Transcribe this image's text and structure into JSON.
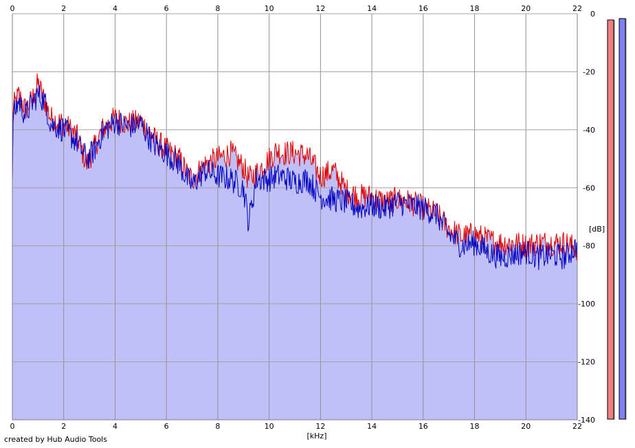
{
  "chart_data": {
    "type": "area",
    "xlabel": "[kHz]",
    "ylabel": "[dB]",
    "xlim": [
      0,
      22
    ],
    "ylim": [
      -140,
      0
    ],
    "x_ticks": [
      0,
      2,
      4,
      6,
      8,
      10,
      12,
      14,
      16,
      18,
      20,
      22
    ],
    "y_ticks": [
      0,
      -20,
      -40,
      -60,
      -80,
      -100,
      -120,
      -140
    ],
    "grid": true,
    "series": [
      {
        "color": "#e00000",
        "x": [
          0,
          0.25,
          0.5,
          0.75,
          1.0,
          1.25,
          1.5,
          2.0,
          2.5,
          2.9,
          3.2,
          3.5,
          4.0,
          4.5,
          5.0,
          5.5,
          6.0,
          6.5,
          6.8,
          7.0,
          7.5,
          8.0,
          8.5,
          9.0,
          9.2,
          9.5,
          10.0,
          10.3,
          10.5,
          11.0,
          11.5,
          12.0,
          12.5,
          13.0,
          13.5,
          14.0,
          14.5,
          15.0,
          15.5,
          16.0,
          16.5,
          17.0,
          17.5,
          18.0,
          18.5,
          19.0,
          19.5,
          20.0,
          20.5,
          21.0,
          21.5,
          22.0
        ],
        "y": [
          -33,
          -28,
          -33,
          -30,
          -24,
          -30,
          -36,
          -38,
          -42,
          -52,
          -46,
          -40,
          -36,
          -38,
          -37,
          -43,
          -47,
          -50,
          -55,
          -57,
          -52,
          -50,
          -48,
          -53,
          -57,
          -55,
          -50,
          -47,
          -48,
          -48,
          -49,
          -56,
          -54,
          -61,
          -63,
          -63,
          -65,
          -64,
          -65,
          -67,
          -69,
          -74,
          -77,
          -76,
          -78,
          -79,
          -79,
          -80,
          -79,
          -79,
          -79,
          -81
        ]
      },
      {
        "color": "#0000c0",
        "x": [
          0,
          0.25,
          0.5,
          0.75,
          1.0,
          1.25,
          1.5,
          2.0,
          2.5,
          2.9,
          3.2,
          3.5,
          4.0,
          4.5,
          5.0,
          5.5,
          6.0,
          6.5,
          6.8,
          7.0,
          7.5,
          8.0,
          8.5,
          9.0,
          9.2,
          9.5,
          10.0,
          10.3,
          10.5,
          11.0,
          11.5,
          12.0,
          12.5,
          13.0,
          13.5,
          14.0,
          14.5,
          15.0,
          15.5,
          16.0,
          16.5,
          17.0,
          17.5,
          18.0,
          18.5,
          19.0,
          19.5,
          20.0,
          20.5,
          21.0,
          21.5,
          22.0
        ],
        "y": [
          -36,
          -30,
          -35,
          -31,
          -28,
          -30,
          -38,
          -40,
          -44,
          -50,
          -47,
          -41,
          -37,
          -39,
          -38,
          -45,
          -48,
          -52,
          -57,
          -59,
          -54,
          -56,
          -57,
          -60,
          -72,
          -57,
          -57,
          -56,
          -56,
          -58,
          -57,
          -63,
          -64,
          -65,
          -67,
          -66,
          -67,
          -65,
          -66,
          -67,
          -69,
          -76,
          -80,
          -79,
          -82,
          -84,
          -83,
          -82,
          -84,
          -83,
          -84,
          -80
        ]
      }
    ]
  },
  "meters": {
    "left_color": "#f08080",
    "right_color": "#8080f0"
  },
  "footer": {
    "credit": "created by Hub Audio Tools"
  }
}
